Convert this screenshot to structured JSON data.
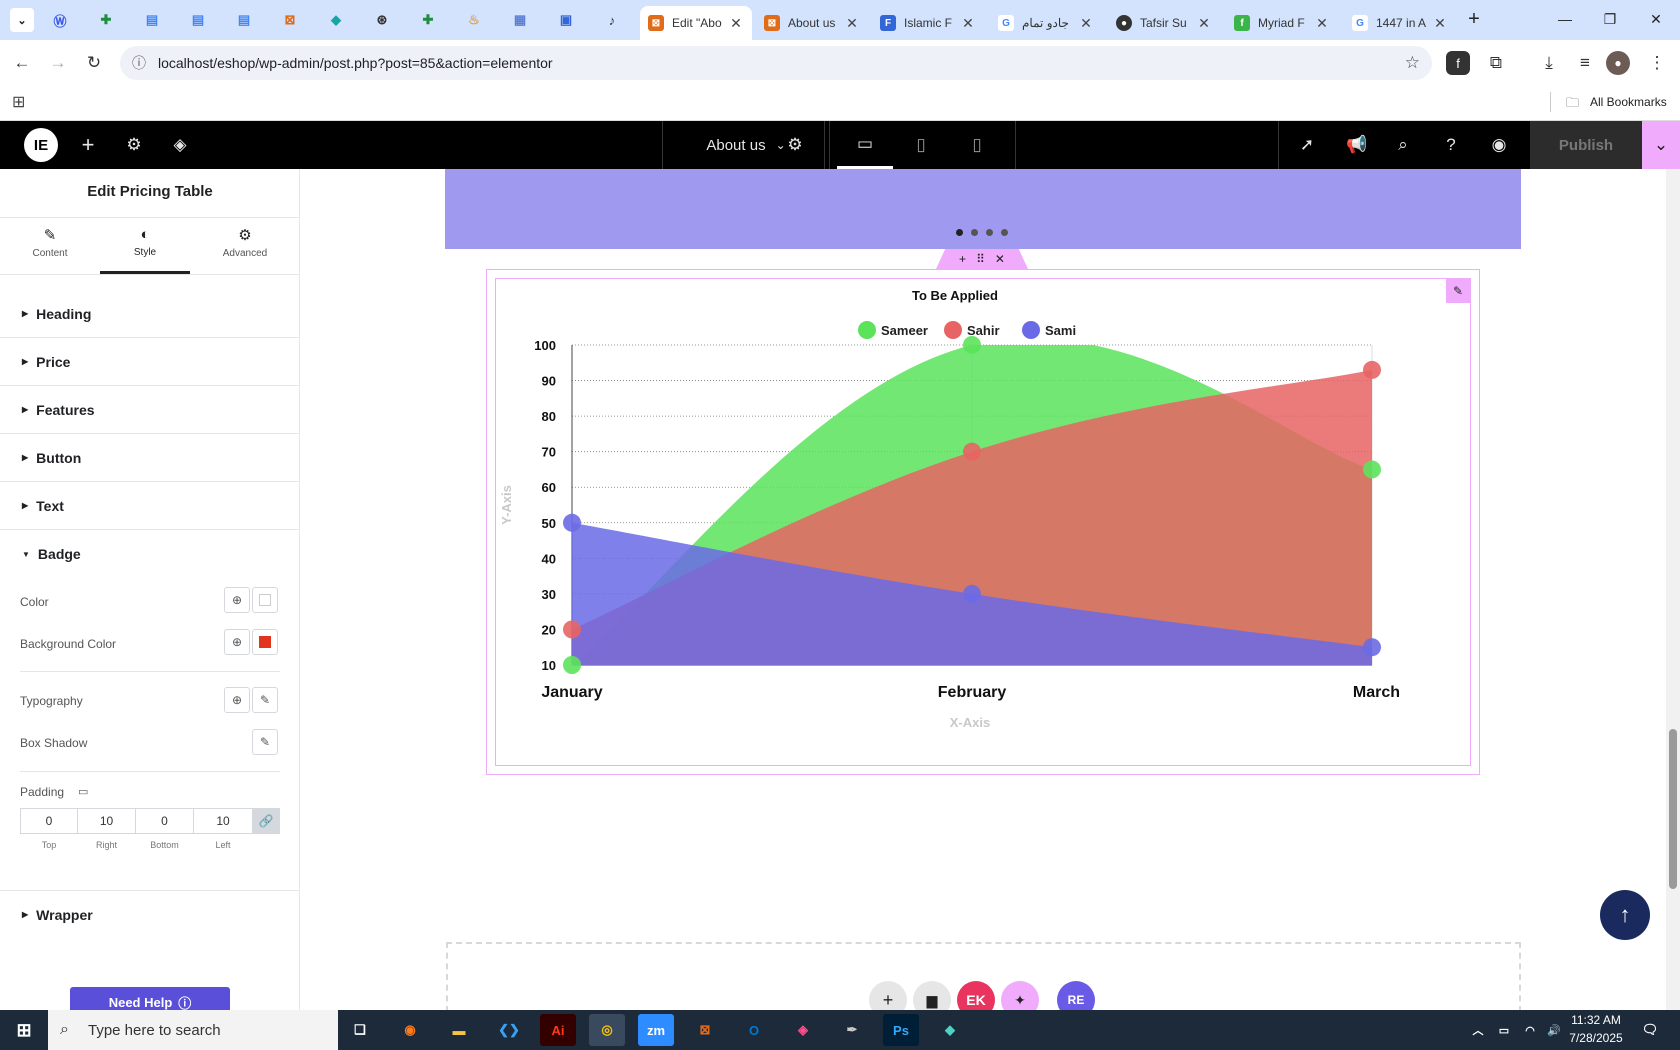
{
  "browser": {
    "tabs": [
      {
        "title": "Edit \"Abo",
        "active": true
      },
      {
        "title": "About us"
      },
      {
        "title": "Islamic F"
      },
      {
        "title": "جادو تمام"
      },
      {
        "title": "Tafsir Su"
      },
      {
        "title": "Myriad F"
      },
      {
        "title": "1447 in A"
      }
    ],
    "url": "localhost/eshop/wp-admin/post.php?post=85&action=elementor",
    "bookmarks_label": "All Bookmarks"
  },
  "editor": {
    "page_name": "About us",
    "publish_label": "Publish",
    "panel_title": "Edit Pricing Table",
    "tabs": [
      "Content",
      "Style",
      "Advanced"
    ],
    "sections": [
      "Heading",
      "Price",
      "Features",
      "Button",
      "Text",
      "Badge",
      "Wrapper"
    ],
    "badge": {
      "color_label": "Color",
      "color_value": "#ffffff",
      "bg_label": "Background Color",
      "bg_value": "#e0341e",
      "typography_label": "Typography",
      "box_shadow_label": "Box Shadow",
      "padding_label": "Padding",
      "padding": {
        "top": "0",
        "right": "10",
        "bottom": "0",
        "left": "10"
      },
      "padding_labels": {
        "top": "Top",
        "right": "Right",
        "bottom": "Bottom",
        "left": "Left"
      }
    },
    "need_help": "Need Help"
  },
  "chart_data": {
    "type": "area",
    "title": "To Be Applied",
    "xlabel": "X-Axis",
    "ylabel": "Y-Axis",
    "categories": [
      "January",
      "February",
      "March"
    ],
    "ylim": [
      10,
      100
    ],
    "yticks": [
      10,
      20,
      30,
      40,
      50,
      60,
      70,
      80,
      90,
      100
    ],
    "legend": "top",
    "grid": true,
    "series": [
      {
        "name": "Sameer",
        "values": [
          10,
          100,
          65
        ],
        "color": "#5be35b"
      },
      {
        "name": "Sahir",
        "values": [
          20,
          70,
          93
        ],
        "color": "#e86464"
      },
      {
        "name": "Sami",
        "values": [
          50,
          30,
          15
        ],
        "color": "#6a6ae6"
      }
    ]
  },
  "taskbar": {
    "search_placeholder": "Type here to search",
    "time": "11:32 AM",
    "date": "7/28/2025"
  }
}
